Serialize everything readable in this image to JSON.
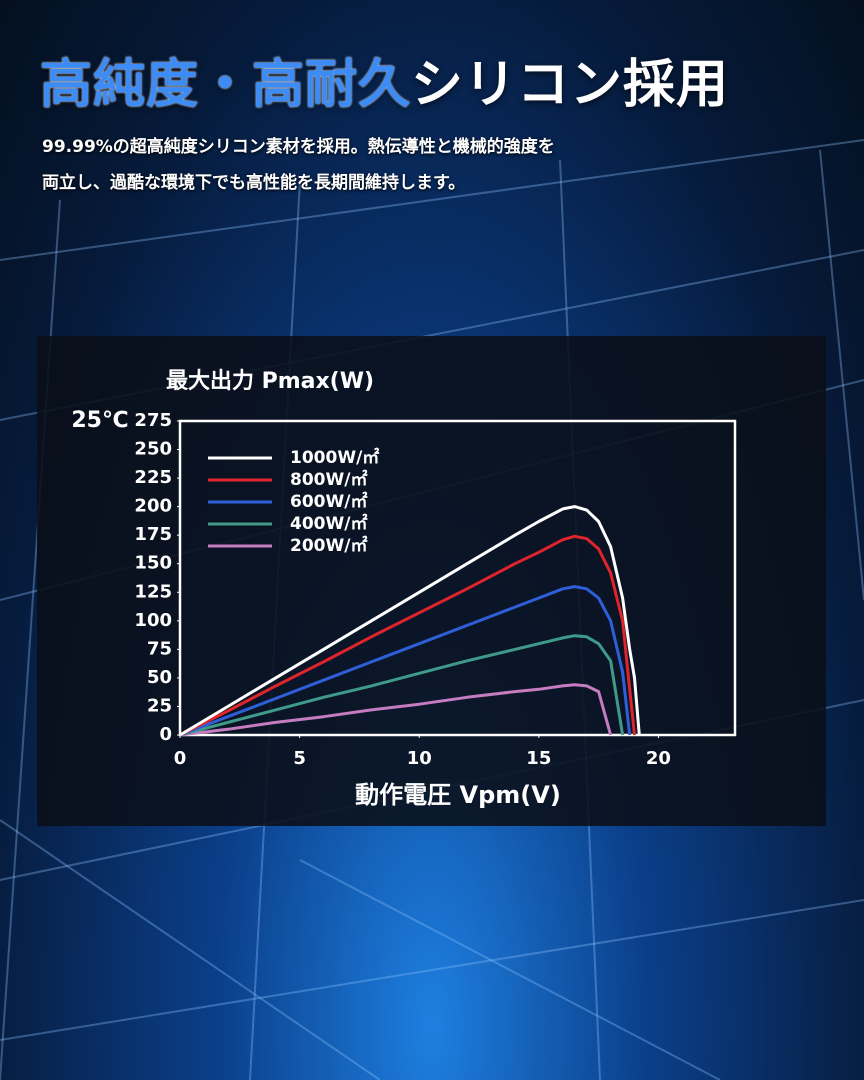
{
  "header": {
    "title_accent": "高純度・高耐久",
    "title_rest": "シリコン採用",
    "description": [
      "99.99%の超高純度シリコン素材を採用。熱伝導性と機械的強度を",
      "両立し、過酷な環境下でも高性能を長期間維持します。"
    ]
  },
  "chart_data": {
    "type": "line",
    "y_label": "最大出力 Pmax(W)",
    "annotation": "25℃",
    "x_label": "動作電圧 Vpm(V)",
    "x": [
      0,
      2,
      4,
      6,
      8,
      10,
      12,
      14,
      15,
      16,
      16.5,
      17,
      17.5,
      18,
      18.5,
      18.8,
      19,
      19.2
    ],
    "series": [
      {
        "name": "1000W/㎡",
        "color": "#ffffff",
        "values": [
          0,
          25,
          50,
          75,
          100,
          125,
          150,
          175,
          187,
          198,
          200,
          197,
          187,
          165,
          120,
          75,
          50,
          0
        ]
      },
      {
        "name": "800W/㎡",
        "color": "#e0242c",
        "values": [
          0,
          21,
          43,
          64,
          86,
          107,
          128,
          150,
          160,
          171,
          174,
          172,
          163,
          142,
          100,
          40,
          0,
          null
        ]
      },
      {
        "name": "600W/㎡",
        "color": "#2f5fd8",
        "values": [
          0,
          16,
          32,
          48,
          64,
          80,
          96,
          112,
          120,
          128,
          130,
          128,
          120,
          100,
          55,
          0,
          null,
          null
        ]
      },
      {
        "name": "400W/㎡",
        "color": "#3f9a8a",
        "values": [
          0,
          11,
          22,
          33,
          43,
          54,
          65,
          75,
          80,
          85,
          87,
          86,
          80,
          65,
          0,
          null,
          null,
          null
        ]
      },
      {
        "name": "200W/㎡",
        "color": "#c57cc0",
        "values": [
          0,
          5,
          11,
          16,
          22,
          27,
          33,
          38,
          40,
          43,
          44,
          43,
          38,
          0,
          null,
          null,
          null,
          null
        ]
      }
    ],
    "xlim": [
      0,
      23.2
    ],
    "xticks": [
      0,
      5,
      10,
      15,
      20
    ],
    "ylim": [
      0,
      275
    ],
    "yticks": [
      0,
      25,
      50,
      75,
      100,
      125,
      150,
      175,
      200,
      225,
      250,
      275
    ],
    "grid": false,
    "legend": "upper-left"
  }
}
